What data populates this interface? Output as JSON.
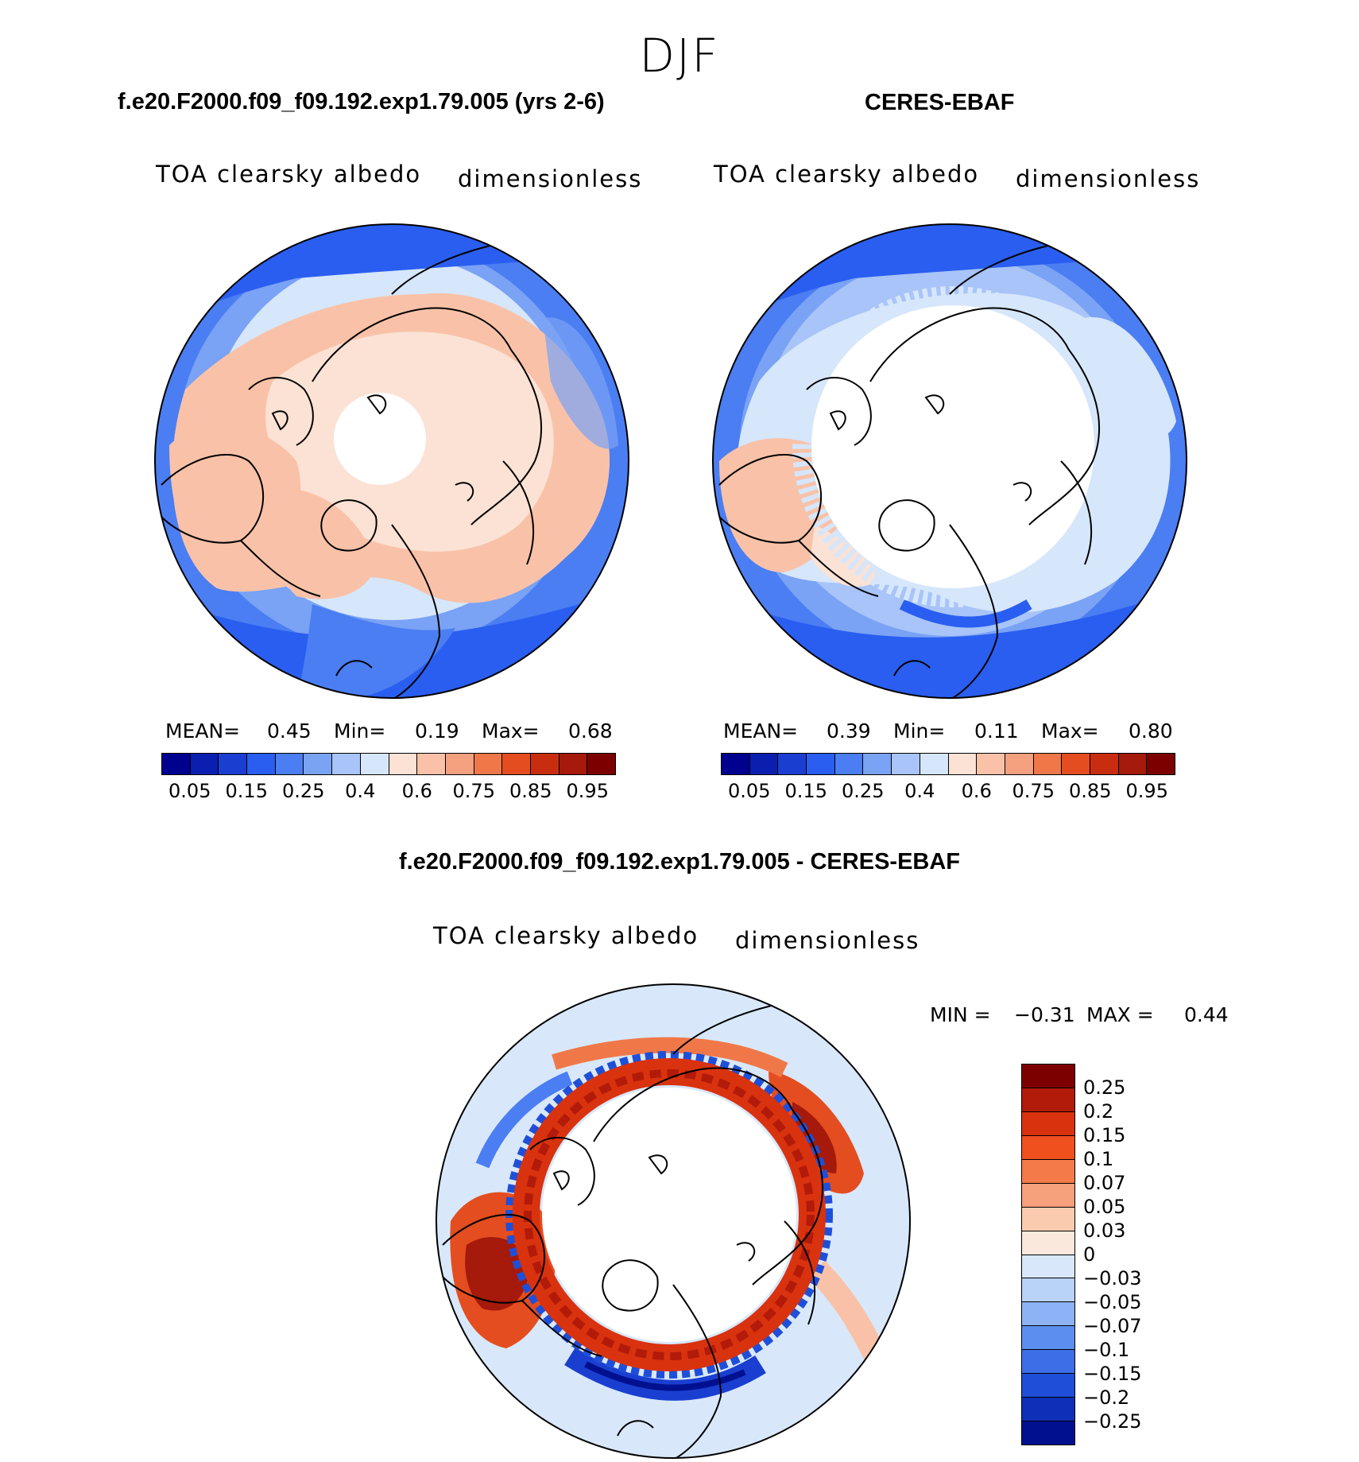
{
  "season": "DJF",
  "panels": {
    "model": {
      "title": "f.e20.F2000.f09_f09.192.exp1.79.005 (yrs 2-6)",
      "variable": "TOA clearsky albedo",
      "units": "dimensionless",
      "stats": {
        "mean_label": "MEAN=",
        "mean": "0.45",
        "min_label": "Min=",
        "min": "0.19",
        "max_label": "Max=",
        "max": "0.68"
      }
    },
    "obs": {
      "title": "CERES-EBAF",
      "variable": "TOA clearsky albedo",
      "units": "dimensionless",
      "stats": {
        "mean_label": "MEAN=",
        "mean": "0.39",
        "min_label": "Min=",
        "min": "0.11",
        "max_label": "Max=",
        "max": "0.80"
      }
    },
    "diff": {
      "title": "f.e20.F2000.f09_f09.192.exp1.79.005 - CERES-EBAF",
      "variable": "TOA clearsky albedo",
      "units": "dimensionless",
      "stats": {
        "min_label": "MIN =",
        "min": "−0.31",
        "max_label": "MAX =",
        "max": "0.44"
      }
    }
  },
  "colorbar_abs": {
    "colors": [
      "#00008f",
      "#0a1fb0",
      "#1a3fd0",
      "#2a5ef0",
      "#4a7ef2",
      "#7aa2f5",
      "#a8c4f8",
      "#d6e6fb",
      "#fbe2d4",
      "#f9c2a8",
      "#f5a07e",
      "#f07848",
      "#e44d20",
      "#c92d0f",
      "#a51a0a",
      "#7d0000"
    ],
    "tick_labels": [
      "0.05",
      "0.15",
      "0.25",
      "0.4",
      "0.6",
      "0.75",
      "0.85",
      "0.95"
    ]
  },
  "colorbar_diff": {
    "colors": [
      "#7d0000",
      "#b21a0a",
      "#d9320e",
      "#f0501e",
      "#f47a4a",
      "#f7a07c",
      "#fbcbb0",
      "#fbe8dc",
      "#d8e8fa",
      "#b9d2f8",
      "#8db2f5",
      "#5c8ef0",
      "#3d6ee8",
      "#1f4fd8",
      "#0f2fb8",
      "#00108f"
    ],
    "tick_labels": [
      "0.25",
      "0.2",
      "0.15",
      "0.1",
      "0.07",
      "0.05",
      "0.03",
      "0",
      "−0.03",
      "−0.05",
      "−0.07",
      "−0.1",
      "−0.15",
      "−0.2",
      "−0.25"
    ]
  }
}
